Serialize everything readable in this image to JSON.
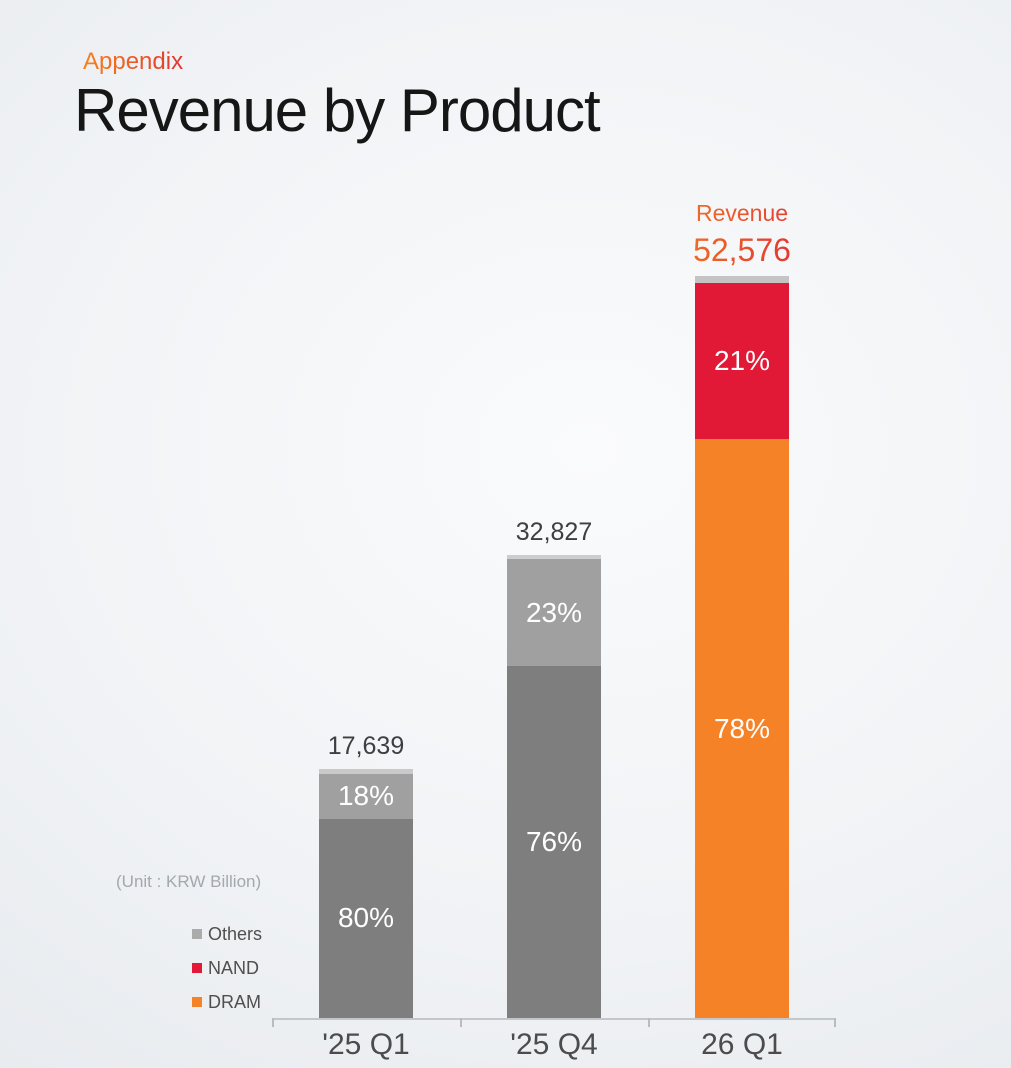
{
  "page": {
    "appendix_label": "Appendix",
    "title": "Revenue by Product",
    "unit_note": "(Unit : KRW Billion)"
  },
  "colors": {
    "accent_orange": "#F58227",
    "accent_red": "#E11937",
    "gray_dark": "#7E7E7E",
    "gray_mid": "#A0A0A0",
    "gray_sliver": "#C9C9C9",
    "axis_line": "#C3C7CB",
    "title_text": "#161616",
    "axis_text": "#4C4C4C"
  },
  "legend": {
    "items": [
      {
        "label": "Others",
        "color": "#ABABAB"
      },
      {
        "label": "NAND",
        "color": "#E11937"
      },
      {
        "label": "DRAM",
        "color": "#F58227"
      }
    ]
  },
  "revenue_callout": {
    "label": "Revenue",
    "value": "52,576"
  },
  "chart_data": {
    "type": "bar",
    "stacked": true,
    "title": "Revenue by Product",
    "unit": "KRW Billion",
    "categories": [
      "'25 Q1",
      "'25 Q4",
      "26 Q1"
    ],
    "totals": [
      17639,
      32827,
      52576
    ],
    "total_labels": [
      "17,639",
      "32,827",
      "52,576"
    ],
    "legend_position": "left-bottom",
    "grid": false,
    "series": [
      {
        "name": "DRAM",
        "values_pct": [
          80,
          76,
          78
        ],
        "labels": [
          "80%",
          "76%",
          "78%"
        ],
        "colors": [
          "#7E7E7E",
          "#7E7E7E",
          "#F58227"
        ]
      },
      {
        "name": "NAND",
        "values_pct": [
          18,
          23,
          21
        ],
        "labels": [
          "18%",
          "23%",
          "21%"
        ],
        "colors": [
          "#A0A0A0",
          "#A0A0A0",
          "#E11937"
        ]
      },
      {
        "name": "Others",
        "values_pct": [
          2,
          1,
          1
        ],
        "labels": [
          "",
          "",
          ""
        ],
        "colors": [
          "#C9C9C9",
          "#CDCDCD",
          "#C4C4C4"
        ]
      }
    ]
  }
}
